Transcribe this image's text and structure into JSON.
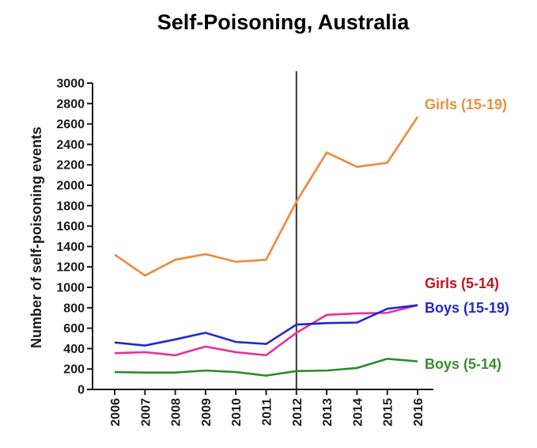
{
  "chart_data": {
    "type": "line",
    "title": "Self-Poisoning, Australia",
    "xlabel": "",
    "ylabel": "Number of self-poisoning events",
    "ylim": [
      0,
      3000
    ],
    "yticks": [
      0,
      200,
      400,
      600,
      800,
      1000,
      1200,
      1400,
      1600,
      1800,
      2000,
      2200,
      2400,
      2600,
      2800,
      3000
    ],
    "x": [
      "2006",
      "2007",
      "2008",
      "2009",
      "2010",
      "2011",
      "2012",
      "2013",
      "2014",
      "2015",
      "2016"
    ],
    "grid": false,
    "legend": "inline labels at right end of lines",
    "reference_line": {
      "x": "2012",
      "color": "#333333"
    },
    "series": [
      {
        "name": "Girls (15-19)",
        "color": "#f0883a",
        "label_color": "#e8903e",
        "values": [
          1320,
          1115,
          1270,
          1325,
          1250,
          1270,
          1840,
          2320,
          2180,
          2220,
          2670
        ]
      },
      {
        "name": "Girls (5-14)",
        "color": "#e6329a",
        "label_color": "#c0141e",
        "values": [
          355,
          365,
          335,
          420,
          365,
          335,
          555,
          730,
          745,
          750,
          825
        ]
      },
      {
        "name": "Boys (15-19)",
        "color": "#1e28d2",
        "label_color": "#1e28d2",
        "values": [
          460,
          430,
          490,
          555,
          465,
          445,
          635,
          650,
          655,
          790,
          825
        ]
      },
      {
        "name": "Boys (5-14)",
        "color": "#2e8b2a",
        "label_color": "#3a8c2e",
        "values": [
          170,
          165,
          165,
          185,
          170,
          135,
          180,
          185,
          210,
          300,
          275
        ]
      }
    ]
  }
}
